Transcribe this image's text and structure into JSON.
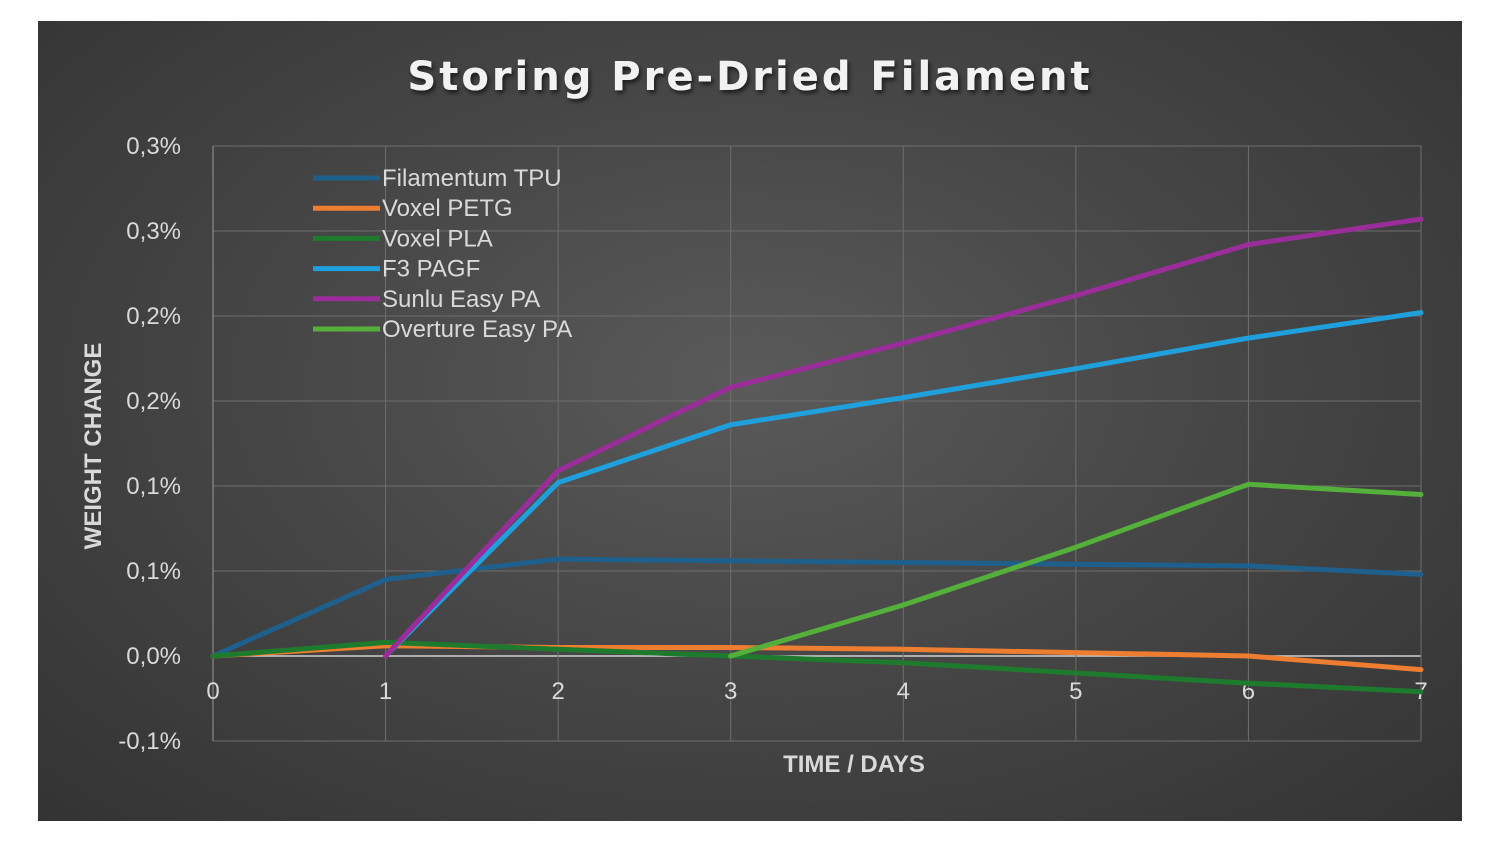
{
  "chart_data": {
    "type": "line",
    "title": "Storing Pre-Dried Filament",
    "xlabel": "TIME / DAYS",
    "ylabel": "WEIGHT CHANGE",
    "x_ticks": [
      "0",
      "1",
      "2",
      "3",
      "4",
      "5",
      "6",
      "7"
    ],
    "y_ticks": [
      "0,3%",
      "0,3%",
      "0,2%",
      "0,2%",
      "0,1%",
      "0,1%",
      "0,0%",
      "-0,1%"
    ],
    "xlim": [
      0,
      7
    ],
    "ylim": [
      -0.05,
      0.3
    ],
    "grid": true,
    "legend_position": "top-left",
    "series": [
      {
        "name": "Filamentum TPU",
        "color": "#1f5f8b",
        "x": [
          0,
          1,
          2,
          3,
          4,
          5,
          6,
          7
        ],
        "y": [
          0.0,
          0.045,
          0.057,
          0.056,
          0.055,
          0.054,
          0.053,
          0.048
        ]
      },
      {
        "name": "Voxel PETG",
        "color": "#ed7d31",
        "x": [
          0,
          1,
          2,
          3,
          4,
          5,
          6,
          7
        ],
        "y": [
          0.0,
          0.006,
          0.005,
          0.005,
          0.004,
          0.002,
          0.0,
          -0.008
        ]
      },
      {
        "name": "Voxel PLA",
        "color": "#1e7a2c",
        "x": [
          0,
          1,
          2,
          3,
          4,
          5,
          6,
          7
        ],
        "y": [
          0.0,
          0.008,
          0.004,
          0.0,
          -0.004,
          -0.01,
          -0.016,
          -0.021
        ]
      },
      {
        "name": "F3 PAGF",
        "color": "#1fa0dd",
        "x": [
          1,
          2,
          3,
          4,
          5,
          6,
          7
        ],
        "y": [
          0.0,
          0.102,
          0.136,
          0.152,
          0.169,
          0.187,
          0.202
        ]
      },
      {
        "name": "Sunlu Easy PA",
        "color": "#9b2d9b",
        "x": [
          1,
          2,
          3,
          4,
          5,
          6,
          7
        ],
        "y": [
          0.0,
          0.109,
          0.158,
          0.184,
          0.212,
          0.242,
          0.257
        ]
      },
      {
        "name": "Overture Easy PA",
        "color": "#54b03a",
        "x": [
          3,
          4,
          5,
          6,
          7
        ],
        "y": [
          0.0,
          0.03,
          0.064,
          0.101,
          0.095
        ]
      }
    ]
  }
}
